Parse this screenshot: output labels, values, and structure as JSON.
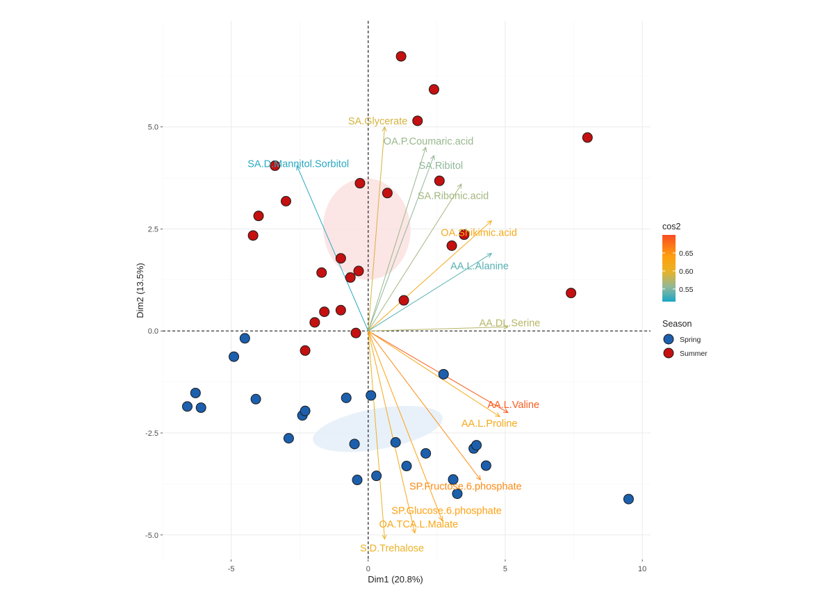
{
  "chart_data": {
    "type": "scatter",
    "subtype": "pca-biplot",
    "xlabel": "Dim1 (20.8%)",
    "ylabel": "Dim2 (13.5%)",
    "xlim": [
      -7.5,
      10.3
    ],
    "ylim": [
      -5.6,
      7.6
    ],
    "x_ticks": [
      -5,
      0,
      5,
      10
    ],
    "x_tick_labels": [
      "-5",
      "0",
      "5",
      "10"
    ],
    "y_ticks": [
      -5,
      -2.5,
      0,
      2.5,
      5
    ],
    "y_tick_labels": [
      "-5.0",
      "-2.5",
      "0.0",
      "2.5",
      "5.0"
    ],
    "grid": true,
    "colorbar": {
      "title": "cos2",
      "min": 0.515,
      "max": 0.7,
      "ticks": [
        0.55,
        0.6,
        0.65
      ],
      "tick_labels": [
        "0.55",
        "0.60",
        "0.65"
      ],
      "stops": [
        {
          "v": 0.515,
          "color": "#1aa6c6"
        },
        {
          "v": 0.555,
          "color": "#8fb89a"
        },
        {
          "v": 0.6,
          "color": "#e9b224"
        },
        {
          "v": 0.64,
          "color": "#ffa010"
        },
        {
          "v": 0.7,
          "color": "#f84d20"
        }
      ]
    },
    "legend": {
      "title": "Season",
      "entries": [
        {
          "label": "Spring",
          "color": "#1c5fad"
        },
        {
          "label": "Summer",
          "color": "#c41010"
        }
      ]
    },
    "ellipses": [
      {
        "group": "Summer",
        "cx": -0.05,
        "cy": 2.5,
        "rx": 1.85,
        "ry": 1.07,
        "angle": -95,
        "color": "#fbe0e0"
      },
      {
        "group": "Spring",
        "cx": 0.35,
        "cy": -2.4,
        "rx": 2.4,
        "ry": 0.5,
        "angle": -10,
        "color": "#e4eef8"
      }
    ],
    "series": [
      {
        "name": "Spring",
        "color": "#1c5fad",
        "points": [
          {
            "x": -6.6,
            "y": -1.85
          },
          {
            "x": -6.3,
            "y": -1.52
          },
          {
            "x": -6.1,
            "y": -1.88
          },
          {
            "x": -4.9,
            "y": -0.63
          },
          {
            "x": -4.5,
            "y": -0.18
          },
          {
            "x": -4.1,
            "y": -1.67
          },
          {
            "x": -2.9,
            "y": -2.63
          },
          {
            "x": -2.4,
            "y": -2.07
          },
          {
            "x": -2.3,
            "y": -1.96
          },
          {
            "x": -0.8,
            "y": -1.64
          },
          {
            "x": 0.1,
            "y": -1.58
          },
          {
            "x": -0.5,
            "y": -2.77
          },
          {
            "x": -0.4,
            "y": -3.65
          },
          {
            "x": 0.3,
            "y": -3.55
          },
          {
            "x": 1.0,
            "y": -2.73
          },
          {
            "x": 1.4,
            "y": -3.31
          },
          {
            "x": 2.1,
            "y": -3.0
          },
          {
            "x": 2.75,
            "y": -1.06
          },
          {
            "x": 3.1,
            "y": -3.64
          },
          {
            "x": 3.25,
            "y": -3.99
          },
          {
            "x": 3.85,
            "y": -2.88
          },
          {
            "x": 3.95,
            "y": -2.8
          },
          {
            "x": 4.3,
            "y": -3.3
          },
          {
            "x": 9.5,
            "y": -4.12
          }
        ]
      },
      {
        "name": "Summer",
        "color": "#c41010",
        "points": [
          {
            "x": 1.2,
            "y": 6.73
          },
          {
            "x": 2.4,
            "y": 5.92
          },
          {
            "x": 1.8,
            "y": 5.15
          },
          {
            "x": 8.0,
            "y": 4.74
          },
          {
            "x": -3.4,
            "y": 4.05
          },
          {
            "x": -3.0,
            "y": 3.18
          },
          {
            "x": -4.0,
            "y": 2.82
          },
          {
            "x": -4.2,
            "y": 2.34
          },
          {
            "x": -0.3,
            "y": 3.62
          },
          {
            "x": 0.7,
            "y": 3.38
          },
          {
            "x": 2.6,
            "y": 3.68
          },
          {
            "x": 3.5,
            "y": 2.36
          },
          {
            "x": 3.05,
            "y": 2.09
          },
          {
            "x": -1.0,
            "y": 1.78
          },
          {
            "x": -1.7,
            "y": 1.43
          },
          {
            "x": -0.35,
            "y": 1.47
          },
          {
            "x": -0.65,
            "y": 1.31
          },
          {
            "x": 1.3,
            "y": 0.75
          },
          {
            "x": 7.4,
            "y": 0.93
          },
          {
            "x": -1.0,
            "y": 0.51
          },
          {
            "x": -1.6,
            "y": 0.47
          },
          {
            "x": -1.95,
            "y": 0.21
          },
          {
            "x": -0.45,
            "y": -0.05
          },
          {
            "x": -2.3,
            "y": -0.48
          }
        ]
      }
    ],
    "variables": [
      {
        "name": "SA.Glycerate",
        "x": 0.6,
        "y": 5.0,
        "cos2": 0.59,
        "lx": 0.35,
        "ly": 5.15,
        "anchor": "middle"
      },
      {
        "name": "OA.P.Coumaric.acid",
        "x": 2.1,
        "y": 4.5,
        "cos2": 0.56,
        "lx": 2.2,
        "ly": 4.65,
        "anchor": "middle"
      },
      {
        "name": "SA.Ribitol",
        "x": 2.4,
        "y": 4.3,
        "cos2": 0.555,
        "lx": 2.65,
        "ly": 4.06,
        "anchor": "middle"
      },
      {
        "name": "SA.Ribonic.acid",
        "x": 3.4,
        "y": 3.6,
        "cos2": 0.565,
        "lx": 3.1,
        "ly": 3.32,
        "anchor": "middle"
      },
      {
        "name": "SA.D.Mannitol.Sorbitol",
        "x": -2.6,
        "y": 4.05,
        "cos2": 0.52,
        "lx": -4.4,
        "ly": 4.1,
        "anchor": "start"
      },
      {
        "name": "OA.Shikimic.acid",
        "x": 4.5,
        "y": 2.7,
        "cos2": 0.62,
        "lx": 2.65,
        "ly": 2.41,
        "anchor": "start"
      },
      {
        "name": "AA.L.Alanine",
        "x": 4.5,
        "y": 1.9,
        "cos2": 0.535,
        "lx": 3.0,
        "ly": 1.6,
        "anchor": "start"
      },
      {
        "name": "AA.DL.Serine",
        "x": 5.1,
        "y": 0.1,
        "cos2": 0.575,
        "lx": 4.05,
        "ly": 0.2,
        "anchor": "start"
      },
      {
        "name": "AA.L.Valine",
        "x": 5.1,
        "y": -2.0,
        "cos2": 0.69,
        "lx": 4.35,
        "ly": -1.8,
        "anchor": "start"
      },
      {
        "name": "AA.L.Proline",
        "x": 4.8,
        "y": -2.1,
        "cos2": 0.62,
        "lx": 3.4,
        "ly": -2.26,
        "anchor": "start"
      },
      {
        "name": "SP.Fructose.6.phosphate",
        "x": 4.1,
        "y": -3.65,
        "cos2": 0.655,
        "lx": 1.5,
        "ly": -3.8,
        "anchor": "start"
      },
      {
        "name": "SP.Glucose.6.phosphate",
        "x": 2.7,
        "y": -4.65,
        "cos2": 0.64,
        "lx": 0.85,
        "ly": -4.4,
        "anchor": "start"
      },
      {
        "name": "OA.TCA.L.Malate",
        "x": 1.7,
        "y": -4.95,
        "cos2": 0.625,
        "lx": 0.4,
        "ly": -4.73,
        "anchor": "start"
      },
      {
        "name": "S.D.Trehalose",
        "x": 0.6,
        "y": -5.1,
        "cos2": 0.6,
        "lx": -0.3,
        "ly": -5.32,
        "anchor": "start"
      }
    ]
  }
}
